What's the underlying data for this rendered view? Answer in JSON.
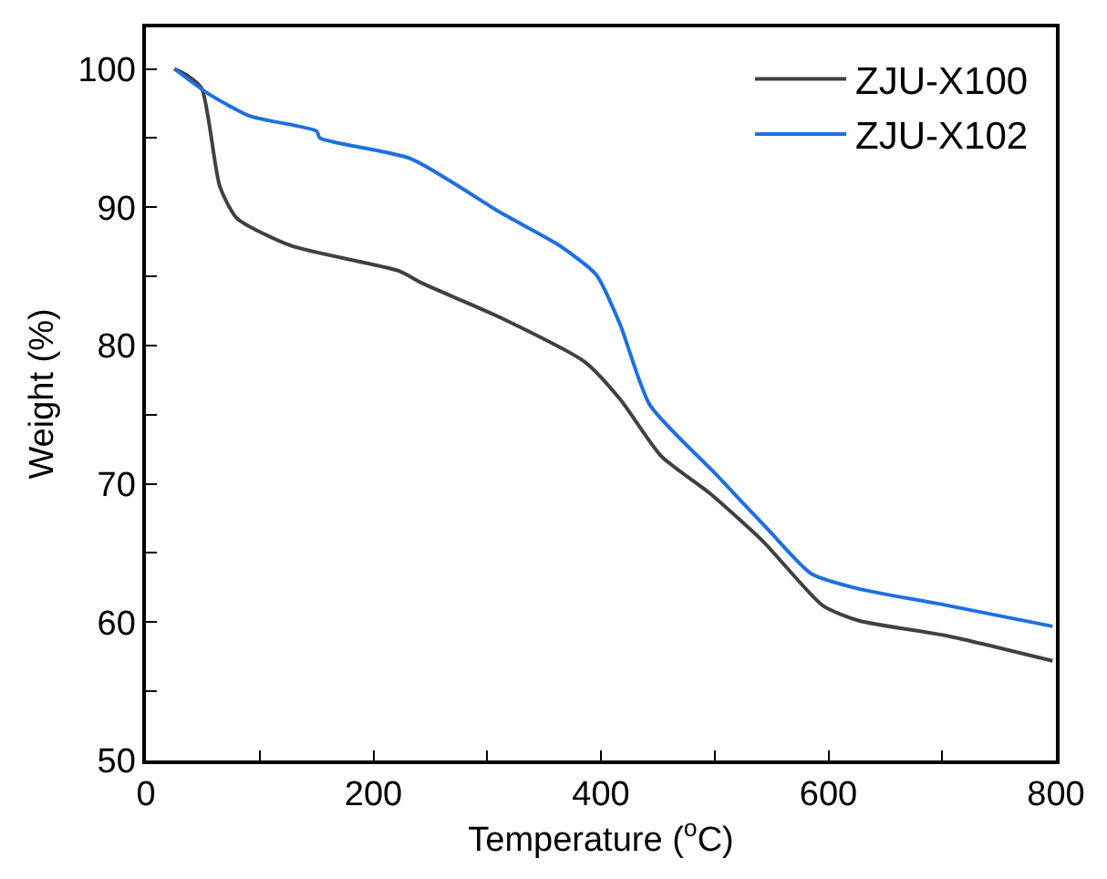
{
  "chart_data": {
    "type": "line",
    "xlabel": "Temperature ($^{o}$C)",
    "ylabel": "Weight (%)",
    "xlim": [
      0,
      800
    ],
    "ylim": [
      50,
      103
    ],
    "xticks": [
      0,
      {
        "value": 100,
        "label": null
      },
      200,
      {
        "value": 300,
        "label": null
      },
      400,
      {
        "value": 500,
        "label": null
      },
      600,
      {
        "value": 700,
        "label": null
      },
      800
    ],
    "yticks": [
      50,
      {
        "value": 55,
        "label": null
      },
      60,
      {
        "value": 65,
        "label": null
      },
      70,
      {
        "value": 75,
        "label": null
      },
      80,
      {
        "value": 85,
        "label": null
      },
      90,
      {
        "value": 95,
        "label": null
      },
      100
    ],
    "legend": "top right",
    "marker": "none",
    "line_style": "solid",
    "series": [
      {
        "name": "ZJU-X100",
        "color": "#404040",
        "x": [
          25,
          35,
          49,
          65,
          80,
          128,
          222,
          243,
          312,
          386,
          417,
          453,
          496,
          543,
          595,
          627,
          705,
          797
        ],
        "values": [
          100,
          99.6,
          98.6,
          91.5,
          89.2,
          87.2,
          85.4,
          84.5,
          82.0,
          78.8,
          76.1,
          72.0,
          69.3,
          65.8,
          61.2,
          60.1,
          59.0,
          57.2
        ]
      },
      {
        "name": "ZJU-X102",
        "color": "#1f6fe0",
        "x": [
          25,
          55,
          91,
          150,
          153,
          233,
          312,
          364,
          396,
          417,
          443,
          501,
          548,
          585,
          627,
          705,
          797
        ],
        "values": [
          100,
          98.2,
          96.6,
          95.5,
          95.0,
          93.5,
          89.6,
          87.2,
          85.1,
          81.5,
          75.7,
          70.7,
          66.6,
          63.5,
          62.4,
          61.2,
          59.7
        ]
      }
    ]
  }
}
